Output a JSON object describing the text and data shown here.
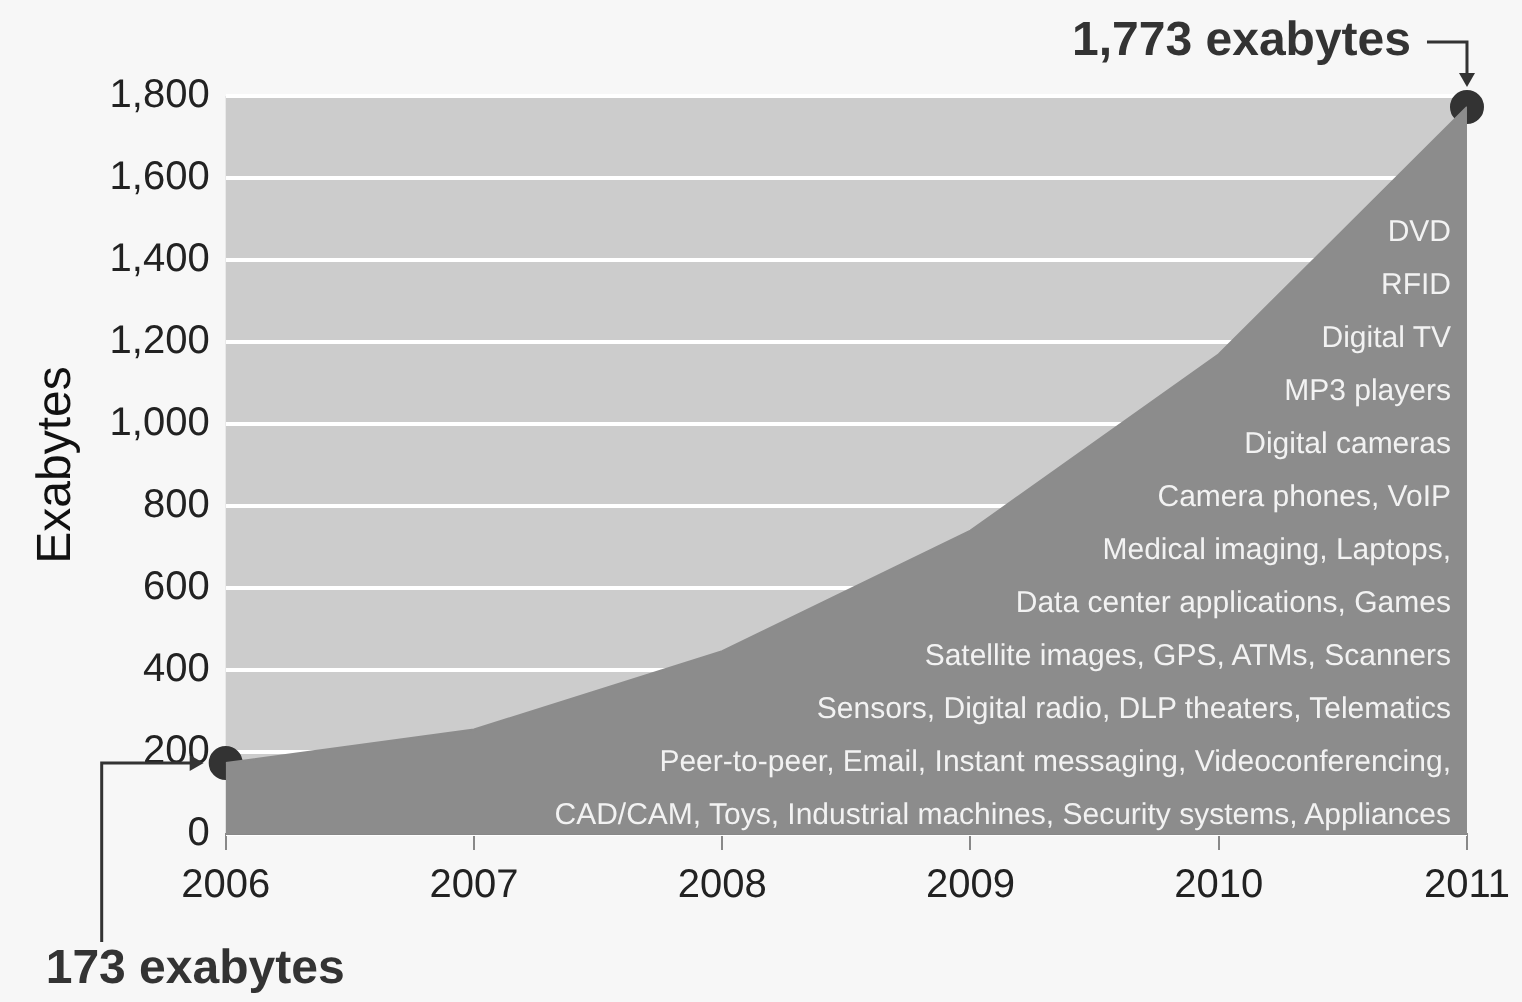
{
  "chart_data": {
    "type": "area",
    "ylabel": "Exabytes",
    "x": [
      2006,
      2007,
      2008,
      2009,
      2010,
      2011
    ],
    "series": [
      {
        "color": "#8c8c8c",
        "values": [
          173,
          255,
          446,
          740,
          1170,
          1773
        ]
      },
      {
        "type": "scatter",
        "color": "#333333",
        "marker": "circle",
        "x": [
          2006,
          2011
        ],
        "values": [
          173,
          1773
        ]
      }
    ],
    "xlim": [
      2006,
      2011
    ],
    "xticks": [
      {
        "value": 2006,
        "label": "2006"
      },
      {
        "value": 2007,
        "label": "2007"
      },
      {
        "value": 2008,
        "label": "2008"
      },
      {
        "value": 2009,
        "label": "2009"
      },
      {
        "value": 2010,
        "label": "2010"
      },
      {
        "value": 2011,
        "label": "2011"
      }
    ],
    "ylim": [
      0,
      1800
    ],
    "yticks": [
      0,
      200,
      400,
      600,
      800,
      {
        "value": 1000,
        "label": "1,000"
      },
      {
        "value": 1200,
        "label": "1,200"
      },
      {
        "value": 1400,
        "label": "1,400"
      },
      {
        "value": 1600,
        "label": "1,600"
      },
      {
        "value": 1800,
        "label": "1,800"
      }
    ],
    "grid": "y",
    "legend": false,
    "annotations": [
      {
        "text": "1,773 exabytes",
        "x": 2011,
        "y": 1773
      },
      "173 exabytes",
      "DVD",
      "RFID",
      "Digital TV",
      "MP3 players",
      "Digital cameras",
      "Camera phones, VoIP",
      "Medical imaging, Laptops,",
      "Data center applications, Games",
      "Satellite images, GPS, ATMs, Scanners",
      "Sensors, Digital radio, DLP theaters, Telematics",
      "Peer-to-peer, Email, Instant messaging, Videoconferencing,",
      "CAD/CAM, Toys, Industrial machines, Security systems, Appliances"
    ]
  }
}
